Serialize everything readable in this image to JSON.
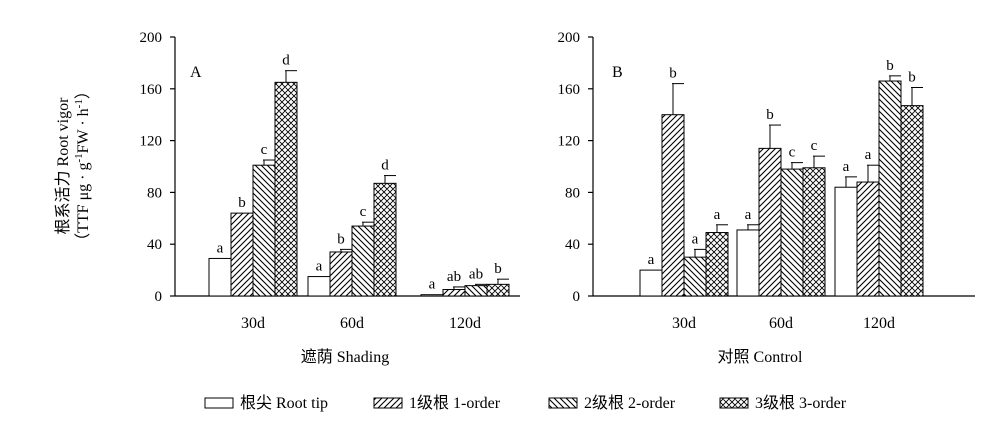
{
  "figure": {
    "y_label_line1": "根系活力 Root vigor",
    "y_label_line2": "（TTF  μg · g",
    "y_label_sup1": "-1",
    "y_label_mid": "FW · h",
    "y_label_sup2": "-1",
    "y_label_end": "）"
  },
  "legend": [
    {
      "label": "根尖 Root tip",
      "pattern": "plain"
    },
    {
      "label": "1级根 1-order",
      "pattern": "diag-right"
    },
    {
      "label": "2级根 2-order",
      "pattern": "diag-left"
    },
    {
      "label": "3级根 3-order",
      "pattern": "cross"
    }
  ],
  "chart_data": [
    {
      "type": "bar",
      "panel_letter": "A",
      "xlabel": "遮荫   Shading",
      "categories": [
        "30d",
        "60d",
        "120d"
      ],
      "yticks": [
        0,
        40,
        80,
        120,
        160,
        200
      ],
      "ylim": [
        0,
        200
      ],
      "series": [
        {
          "name": "根尖 Root tip",
          "values": [
            29,
            15,
            1
          ],
          "errors": [
            0,
            0,
            0
          ],
          "letters": [
            "a",
            "a",
            "a"
          ]
        },
        {
          "name": "1级根 1-order",
          "values": [
            64,
            34,
            5
          ],
          "errors": [
            0,
            2,
            2
          ],
          "letters": [
            "b",
            "b",
            "ab"
          ]
        },
        {
          "name": "2级根 2-order",
          "values": [
            101,
            54,
            8
          ],
          "errors": [
            4,
            3,
            1
          ],
          "letters": [
            "c",
            "c",
            "ab"
          ]
        },
        {
          "name": "3级根 3-order",
          "values": [
            165,
            87,
            9
          ],
          "errors": [
            9,
            6,
            4
          ],
          "letters": [
            "d",
            "d",
            "b"
          ]
        }
      ]
    },
    {
      "type": "bar",
      "panel_letter": "B",
      "xlabel": "对照    Control",
      "categories": [
        "30d",
        "60d",
        "120d"
      ],
      "yticks": [
        0,
        40,
        80,
        120,
        160,
        200
      ],
      "ylim": [
        0,
        200
      ],
      "series": [
        {
          "name": "根尖 Root tip",
          "values": [
            20,
            51,
            84
          ],
          "errors": [
            0,
            4,
            8
          ],
          "letters": [
            "a",
            "a",
            "a"
          ]
        },
        {
          "name": "1级根 1-order",
          "values": [
            140,
            114,
            88
          ],
          "errors": [
            24,
            18,
            13
          ],
          "letters": [
            "b",
            "b",
            "a"
          ]
        },
        {
          "name": "2级根 2-order",
          "values": [
            30,
            98,
            166
          ],
          "errors": [
            6,
            5,
            4
          ],
          "letters": [
            "a",
            "c",
            "b"
          ]
        },
        {
          "name": "3级根 3-order",
          "values": [
            49,
            99,
            147
          ],
          "errors": [
            6,
            9,
            14
          ],
          "letters": [
            "a",
            "c",
            "b"
          ]
        }
      ]
    }
  ]
}
